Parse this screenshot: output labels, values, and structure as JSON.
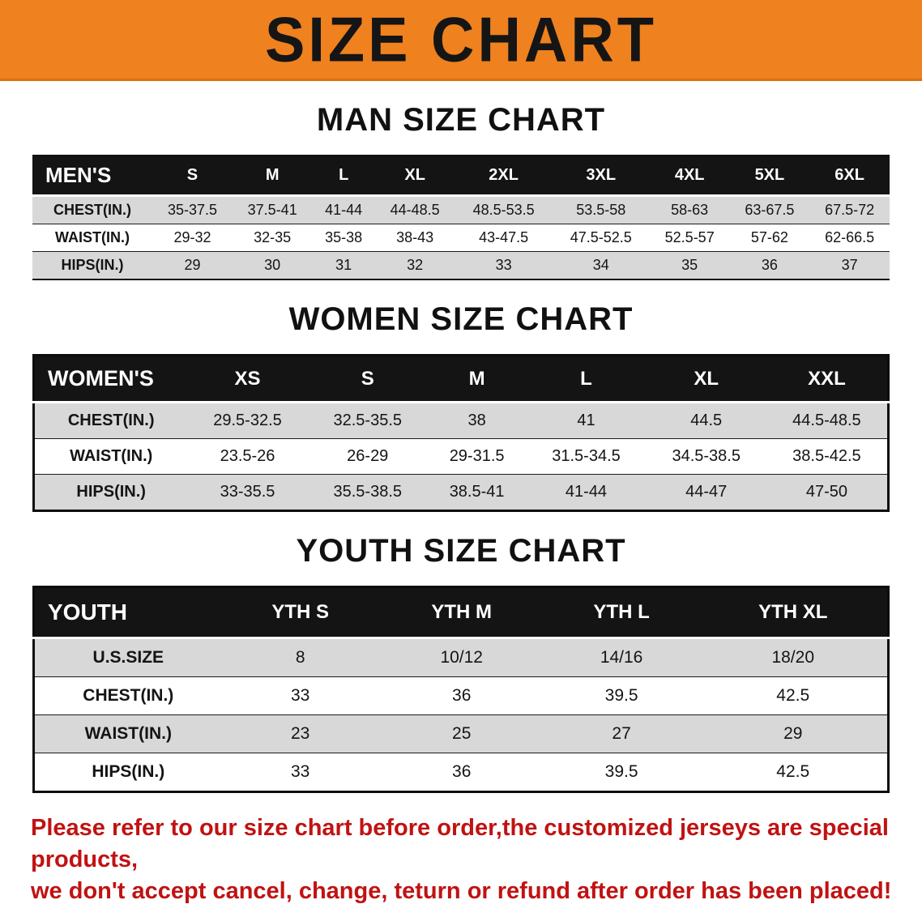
{
  "banner": {
    "title": "SIZE CHART"
  },
  "colors": {
    "banner_bg": "#ef811f",
    "table_header_bg": "#141414",
    "row_alt_bg": "#d8d8d8",
    "notice_red": "#c11212",
    "text_dark": "#141414"
  },
  "chart_data": [
    {
      "type": "table",
      "title": "MAN SIZE CHART",
      "header": [
        "MEN'S",
        "S",
        "M",
        "L",
        "XL",
        "2XL",
        "3XL",
        "4XL",
        "5XL",
        "6XL"
      ],
      "rows": [
        [
          "CHEST(IN.)",
          "35-37.5",
          "37.5-41",
          "41-44",
          "44-48.5",
          "48.5-53.5",
          "53.5-58",
          "58-63",
          "63-67.5",
          "67.5-72"
        ],
        [
          "WAIST(IN.)",
          "29-32",
          "32-35",
          "35-38",
          "38-43",
          "43-47.5",
          "47.5-52.5",
          "52.5-57",
          "57-62",
          "62-66.5"
        ],
        [
          "HIPS(IN.)",
          "29",
          "30",
          "31",
          "32",
          "33",
          "34",
          "35",
          "36",
          "37"
        ]
      ]
    },
    {
      "type": "table",
      "title": "WOMEN SIZE CHART",
      "header": [
        "WOMEN'S",
        "XS",
        "S",
        "M",
        "L",
        "XL",
        "XXL"
      ],
      "rows": [
        [
          "CHEST(IN.)",
          "29.5-32.5",
          "32.5-35.5",
          "38",
          "41",
          "44.5",
          "44.5-48.5"
        ],
        [
          "WAIST(IN.)",
          "23.5-26",
          "26-29",
          "29-31.5",
          "31.5-34.5",
          "34.5-38.5",
          "38.5-42.5"
        ],
        [
          "HIPS(IN.)",
          "33-35.5",
          "35.5-38.5",
          "38.5-41",
          "41-44",
          "44-47",
          "47-50"
        ]
      ]
    },
    {
      "type": "table",
      "title": "YOUTH SIZE CHART",
      "header": [
        "YOUTH",
        "YTH S",
        "YTH M",
        "YTH L",
        "YTH XL"
      ],
      "rows": [
        [
          "U.S.SIZE",
          "8",
          "10/12",
          "14/16",
          "18/20"
        ],
        [
          "CHEST(IN.)",
          "33",
          "36",
          "39.5",
          "42.5"
        ],
        [
          "WAIST(IN.)",
          "23",
          "25",
          "27",
          "29"
        ],
        [
          "HIPS(IN.)",
          "33",
          "36",
          "39.5",
          "42.5"
        ]
      ]
    }
  ],
  "footer": {
    "line1": "Please refer to our size chart before order,the customized jerseys are special products,",
    "line2": "we don't accept cancel, change, teturn or refund after order has been placed!"
  }
}
